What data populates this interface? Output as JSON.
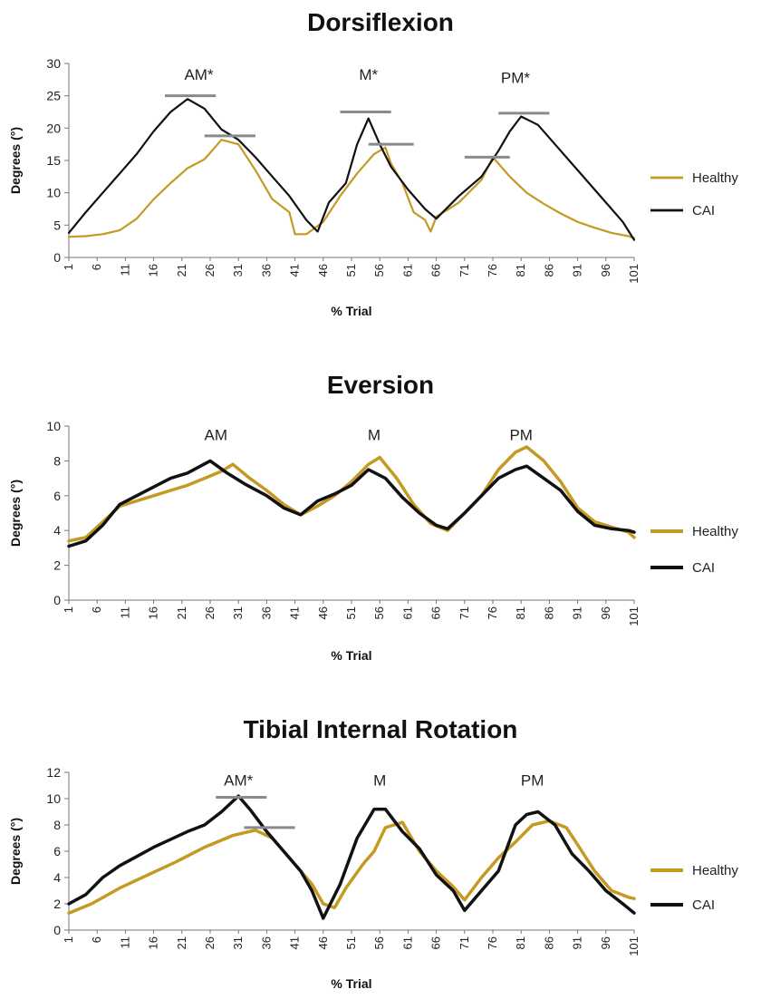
{
  "chart_data": [
    {
      "type": "line",
      "title": "Dorsiflexion",
      "xlabel": "% Trial",
      "ylabel": "Degrees (°)",
      "ylim": [
        0,
        30
      ],
      "yticks": [
        0,
        5,
        10,
        15,
        20,
        25,
        30
      ],
      "xticks": [
        1,
        6,
        11,
        16,
        21,
        26,
        31,
        36,
        41,
        46,
        51,
        56,
        61,
        66,
        71,
        76,
        81,
        86,
        91,
        96,
        101
      ],
      "xlim": [
        1,
        101
      ],
      "legend_position": "right",
      "series": [
        {
          "name": "Healthy",
          "color": "#C49A22",
          "x": [
            1,
            4,
            7,
            10,
            13,
            16,
            19,
            22,
            25,
            28,
            31,
            34,
            37,
            40,
            41,
            43,
            46,
            49,
            52,
            55,
            57,
            58,
            60,
            62,
            64,
            65,
            66,
            70,
            74,
            76,
            79,
            82,
            85,
            88,
            91,
            94,
            97,
            100,
            101
          ],
          "values": [
            3.2,
            3.3,
            3.6,
            4.2,
            6.0,
            9.0,
            11.5,
            13.8,
            15.2,
            18.2,
            17.5,
            13.5,
            9.0,
            7.0,
            3.6,
            3.6,
            5.5,
            9.5,
            13.0,
            16.0,
            17.0,
            14.5,
            11.5,
            7.0,
            5.8,
            4.0,
            6.3,
            8.5,
            12.0,
            15.5,
            12.5,
            10.0,
            8.3,
            6.8,
            5.5,
            4.6,
            3.8,
            3.3,
            3.0
          ]
        },
        {
          "name": "CAI",
          "color": "#111111",
          "x": [
            1,
            4,
            7,
            10,
            13,
            16,
            19,
            22,
            25,
            28,
            31,
            34,
            37,
            40,
            43,
            45,
            47,
            50,
            52,
            54,
            56,
            58,
            61,
            64,
            66,
            70,
            74,
            77,
            79,
            81,
            84,
            87,
            90,
            93,
            96,
            99,
            101
          ],
          "values": [
            3.8,
            7.0,
            10.0,
            13.0,
            16.0,
            19.5,
            22.5,
            24.5,
            23.0,
            19.8,
            18.2,
            15.5,
            12.5,
            9.5,
            5.8,
            4.0,
            8.5,
            11.5,
            17.5,
            21.5,
            17.5,
            14.0,
            10.5,
            7.5,
            6.0,
            9.5,
            12.5,
            16.5,
            19.5,
            21.8,
            20.5,
            17.5,
            14.5,
            11.5,
            8.5,
            5.5,
            2.7
          ]
        }
      ],
      "annotations": [
        {
          "text": "AM*",
          "x": 24,
          "y": 27.5
        },
        {
          "text": "M*",
          "x": 54,
          "y": 27.5
        },
        {
          "text": "PM*",
          "x": 80,
          "y": 27.0
        }
      ],
      "significance_bars": [
        {
          "x1": 18,
          "x2": 27,
          "y": 25.0
        },
        {
          "x1": 25,
          "x2": 34,
          "y": 18.8
        },
        {
          "x1": 49,
          "x2": 58,
          "y": 22.5
        },
        {
          "x1": 54,
          "x2": 62,
          "y": 17.5
        },
        {
          "x1": 71,
          "x2": 79,
          "y": 15.5
        },
        {
          "x1": 77,
          "x2": 86,
          "y": 22.3
        }
      ]
    },
    {
      "type": "line",
      "title": "Eversion",
      "xlabel": "% Trial",
      "ylabel": "Degrees (°)",
      "ylim": [
        0,
        10
      ],
      "yticks": [
        0,
        2,
        4,
        6,
        8,
        10
      ],
      "xticks": [
        1,
        6,
        11,
        16,
        21,
        26,
        31,
        36,
        41,
        46,
        51,
        56,
        61,
        66,
        71,
        76,
        81,
        86,
        91,
        96,
        101
      ],
      "xlim": [
        1,
        101
      ],
      "legend_position": "right",
      "series": [
        {
          "name": "Healthy",
          "color": "#C49A22",
          "x": [
            1,
            4,
            7,
            10,
            13,
            16,
            19,
            22,
            25,
            28,
            30,
            33,
            36,
            39,
            42,
            45,
            48,
            51,
            54,
            56,
            59,
            62,
            65,
            68,
            71,
            74,
            77,
            80,
            82,
            85,
            88,
            91,
            94,
            97,
            100,
            101
          ],
          "values": [
            3.4,
            3.6,
            4.5,
            5.4,
            5.7,
            6.0,
            6.3,
            6.6,
            7.0,
            7.4,
            7.8,
            7.0,
            6.3,
            5.5,
            4.9,
            5.4,
            6.0,
            6.8,
            7.8,
            8.2,
            7.0,
            5.5,
            4.4,
            4.0,
            5.0,
            6.0,
            7.5,
            8.5,
            8.8,
            8.0,
            6.8,
            5.3,
            4.5,
            4.2,
            3.9,
            3.6
          ]
        },
        {
          "name": "CAI",
          "color": "#111111",
          "x": [
            1,
            4,
            7,
            10,
            13,
            16,
            19,
            22,
            26,
            29,
            32,
            36,
            39,
            42,
            45,
            48,
            51,
            54,
            57,
            60,
            63,
            66,
            68,
            71,
            74,
            77,
            80,
            82,
            85,
            88,
            91,
            94,
            97,
            100,
            101
          ],
          "values": [
            3.1,
            3.4,
            4.3,
            5.5,
            6.0,
            6.5,
            7.0,
            7.3,
            8.0,
            7.3,
            6.7,
            6.0,
            5.3,
            4.9,
            5.7,
            6.1,
            6.6,
            7.5,
            7.0,
            5.9,
            5.0,
            4.3,
            4.1,
            5.0,
            6.0,
            7.0,
            7.5,
            7.7,
            7.0,
            6.3,
            5.1,
            4.3,
            4.1,
            4.0,
            3.9
          ]
        }
      ],
      "annotations": [
        {
          "text": "AM",
          "x": 27,
          "y": 9.2
        },
        {
          "text": "M",
          "x": 55,
          "y": 9.2
        },
        {
          "text": "PM",
          "x": 81,
          "y": 9.2
        }
      ],
      "significance_bars": []
    },
    {
      "type": "line",
      "title": "Tibial Internal Rotation",
      "xlabel": "% Trial",
      "ylabel": "Degrees (°)",
      "ylim": [
        0,
        12
      ],
      "yticks": [
        0,
        2,
        4,
        6,
        8,
        10,
        12
      ],
      "xticks": [
        1,
        6,
        11,
        16,
        21,
        26,
        31,
        36,
        41,
        46,
        51,
        56,
        61,
        66,
        71,
        76,
        81,
        86,
        91,
        96,
        101
      ],
      "xlim": [
        1,
        101
      ],
      "legend_position": "right",
      "series": [
        {
          "name": "Healthy",
          "color": "#C49A22",
          "x": [
            1,
            5,
            10,
            15,
            20,
            25,
            30,
            34,
            37,
            40,
            44,
            46,
            48,
            50,
            53,
            55,
            57,
            60,
            63,
            66,
            69,
            71,
            74,
            77,
            80,
            83,
            86,
            89,
            91,
            94,
            97,
            100,
            101
          ],
          "values": [
            1.3,
            2.0,
            3.2,
            4.2,
            5.2,
            6.3,
            7.2,
            7.6,
            7.0,
            5.5,
            3.5,
            2.0,
            1.7,
            3.2,
            5.0,
            6.0,
            7.8,
            8.2,
            6.0,
            4.5,
            3.3,
            2.3,
            4.0,
            5.5,
            6.7,
            8.0,
            8.3,
            7.8,
            6.5,
            4.5,
            3.0,
            2.5,
            2.4
          ]
        },
        {
          "name": "CAI",
          "color": "#111111",
          "x": [
            1,
            4,
            7,
            10,
            13,
            16,
            19,
            22,
            25,
            28,
            31,
            33,
            36,
            39,
            42,
            44,
            46,
            49,
            52,
            55,
            57,
            60,
            63,
            66,
            69,
            71,
            74,
            77,
            80,
            82,
            84,
            87,
            90,
            93,
            96,
            99,
            101
          ],
          "values": [
            2.0,
            2.7,
            4.0,
            4.9,
            5.6,
            6.3,
            6.9,
            7.5,
            8.0,
            9.0,
            10.2,
            9.2,
            7.5,
            6.0,
            4.5,
            3.0,
            0.9,
            3.5,
            7.0,
            9.2,
            9.2,
            7.5,
            6.2,
            4.2,
            3.0,
            1.5,
            3.0,
            4.5,
            8.0,
            8.8,
            9.0,
            8.0,
            5.8,
            4.5,
            3.0,
            2.0,
            1.3
          ]
        }
      ],
      "annotations": [
        {
          "text": "AM*",
          "x": 31,
          "y": 11.0
        },
        {
          "text": "M",
          "x": 56,
          "y": 11.0
        },
        {
          "text": "PM",
          "x": 83,
          "y": 11.0
        }
      ],
      "significance_bars": [
        {
          "x1": 27,
          "x2": 36,
          "y": 10.1
        },
        {
          "x1": 32,
          "x2": 41,
          "y": 7.8
        }
      ]
    }
  ]
}
